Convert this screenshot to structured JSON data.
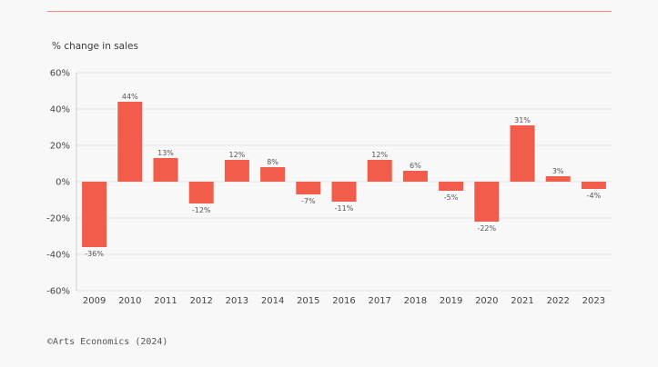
{
  "header": {
    "ylabel": "% change in sales"
  },
  "footer": {
    "credit": "©Arts Economics (2024)"
  },
  "colors": {
    "bar": "#f25c4a",
    "grid": "#e6e6e6",
    "rule": "#f28a7a"
  },
  "chart_data": {
    "type": "bar",
    "title": "",
    "xlabel": "",
    "ylabel": "% change in sales",
    "categories": [
      "2009",
      "2010",
      "2011",
      "2012",
      "2013",
      "2014",
      "2015",
      "2016",
      "2017",
      "2018",
      "2019",
      "2020",
      "2021",
      "2022",
      "2023"
    ],
    "values": [
      -36,
      44,
      13,
      -12,
      12,
      8,
      -7,
      -11,
      12,
      6,
      -5,
      -22,
      31,
      3,
      -4
    ],
    "value_labels": [
      "-36%",
      "44%",
      "13%",
      "-12%",
      "12%",
      "8%",
      "-7%",
      "-11%",
      "12%",
      "6%",
      "-5%",
      "-22%",
      "31%",
      "3%",
      "-4%"
    ],
    "ylim": [
      -60,
      60
    ],
    "yticks": [
      60,
      40,
      20,
      0,
      -20,
      -40,
      -60
    ],
    "ytick_labels": [
      "60%",
      "40%",
      "20%",
      "0%",
      "-20%",
      "-40%",
      "-60%"
    ],
    "grid": true,
    "legend": "none"
  }
}
